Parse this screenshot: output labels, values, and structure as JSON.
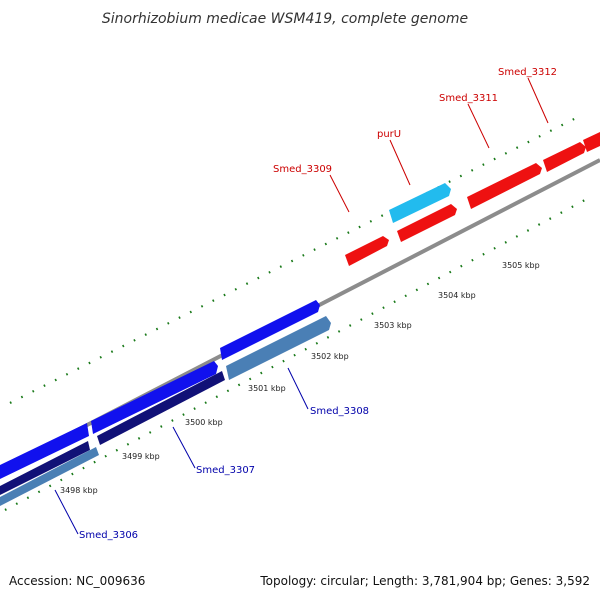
{
  "title": "Sinorhizobium medicae WSM419, complete genome",
  "footer": {
    "accession": "Accession: NC_009636",
    "summary": "Topology: circular; Length: 3,781,904 bp; Genes: 3,592"
  },
  "colors": {
    "backbone": "#8c8c8c",
    "tick": "#1a7a1a",
    "red_gene": "#ee1111",
    "cyan_gene": "#22bbee",
    "blue_gene": "#1111ee",
    "navy_gene": "#111177",
    "steel_gene": "#4a7fb5",
    "red_label": "#cc0000",
    "blue_label": "#0000aa"
  },
  "scale_labels": [
    "3498 kbp",
    "3499 kbp",
    "3500 kbp",
    "3501 kbp",
    "3502 kbp",
    "3503 kbp",
    "3504 kbp",
    "3505 kbp"
  ],
  "gene_labels": [
    {
      "name": "Smed_3312",
      "strand": "forward"
    },
    {
      "name": "Smed_3311",
      "strand": "forward"
    },
    {
      "name": "purU",
      "strand": "forward"
    },
    {
      "name": "Smed_3309",
      "strand": "forward"
    },
    {
      "name": "Smed_3308",
      "strand": "reverse"
    },
    {
      "name": "Smed_3307",
      "strand": "reverse"
    },
    {
      "name": "Smed_3306",
      "strand": "reverse"
    }
  ]
}
